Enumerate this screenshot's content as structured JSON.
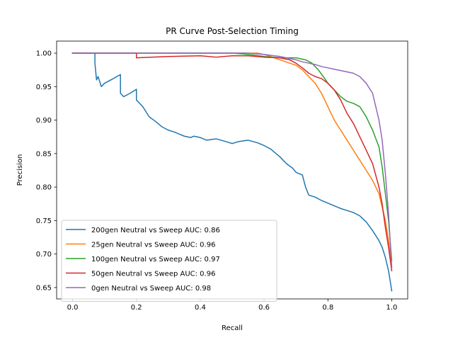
{
  "chart_data": {
    "type": "line",
    "title": "PR Curve Post-Selection Timing",
    "xlabel": "Recall",
    "ylabel": "Precision",
    "xlim": [
      -0.05,
      1.05
    ],
    "ylim": [
      0.633,
      1.018
    ],
    "xticks": [
      0.0,
      0.2,
      0.4,
      0.6,
      0.8,
      1.0
    ],
    "xtick_labels": [
      "0.0",
      "0.2",
      "0.4",
      "0.6",
      "0.8",
      "1.0"
    ],
    "yticks": [
      0.65,
      0.7,
      0.75,
      0.8,
      0.85,
      0.9,
      0.95,
      1.0
    ],
    "ytick_labels": [
      "0.65",
      "0.70",
      "0.75",
      "0.80",
      "0.85",
      "0.90",
      "0.95",
      "1.00"
    ],
    "grid": false,
    "legend_position": "lower-left",
    "series": [
      {
        "name": "200gen Neutral vs Sweep AUC: 0.86",
        "color": "#1f77b4",
        "x": [
          0.0,
          0.07,
          0.07,
          0.075,
          0.08,
          0.09,
          0.1,
          0.12,
          0.15,
          0.15,
          0.16,
          0.18,
          0.2,
          0.2,
          0.22,
          0.24,
          0.26,
          0.28,
          0.3,
          0.32,
          0.35,
          0.37,
          0.38,
          0.4,
          0.42,
          0.45,
          0.48,
          0.5,
          0.52,
          0.55,
          0.58,
          0.6,
          0.62,
          0.65,
          0.67,
          0.69,
          0.7,
          0.72,
          0.73,
          0.74,
          0.76,
          0.78,
          0.8,
          0.82,
          0.84,
          0.86,
          0.88,
          0.9,
          0.92,
          0.94,
          0.96,
          0.97,
          0.98,
          0.99,
          1.0
        ],
        "y": [
          1.0,
          1.0,
          0.985,
          0.96,
          0.965,
          0.95,
          0.955,
          0.96,
          0.968,
          0.94,
          0.935,
          0.94,
          0.946,
          0.93,
          0.92,
          0.905,
          0.898,
          0.89,
          0.885,
          0.882,
          0.876,
          0.874,
          0.876,
          0.874,
          0.87,
          0.872,
          0.868,
          0.865,
          0.868,
          0.87,
          0.866,
          0.862,
          0.857,
          0.845,
          0.835,
          0.828,
          0.822,
          0.818,
          0.8,
          0.788,
          0.785,
          0.78,
          0.776,
          0.772,
          0.768,
          0.765,
          0.762,
          0.757,
          0.748,
          0.735,
          0.72,
          0.71,
          0.695,
          0.675,
          0.645
        ]
      },
      {
        "name": "25gen Neutral vs Sweep AUC: 0.96",
        "color": "#ff7f0e",
        "x": [
          0.0,
          0.3,
          0.5,
          0.58,
          0.6,
          0.62,
          0.65,
          0.68,
          0.7,
          0.72,
          0.74,
          0.76,
          0.78,
          0.8,
          0.82,
          0.84,
          0.86,
          0.88,
          0.9,
          0.92,
          0.94,
          0.96,
          0.97,
          0.98,
          0.99,
          1.0
        ],
        "y": [
          1.0,
          1.0,
          1.0,
          1.0,
          0.998,
          0.995,
          0.99,
          0.985,
          0.982,
          0.975,
          0.965,
          0.955,
          0.94,
          0.92,
          0.9,
          0.885,
          0.87,
          0.855,
          0.84,
          0.825,
          0.81,
          0.79,
          0.77,
          0.75,
          0.72,
          0.68
        ]
      },
      {
        "name": "100gen Neutral vs Sweep AUC: 0.97",
        "color": "#2ca02c",
        "x": [
          0.0,
          0.3,
          0.5,
          0.55,
          0.6,
          0.65,
          0.7,
          0.73,
          0.75,
          0.77,
          0.79,
          0.8,
          0.82,
          0.84,
          0.86,
          0.88,
          0.9,
          0.92,
          0.94,
          0.96,
          0.97,
          0.98,
          0.99,
          1.0
        ],
        "y": [
          1.0,
          1.0,
          1.0,
          0.998,
          0.995,
          0.993,
          0.993,
          0.99,
          0.985,
          0.975,
          0.962,
          0.955,
          0.945,
          0.935,
          0.928,
          0.925,
          0.92,
          0.905,
          0.885,
          0.86,
          0.83,
          0.79,
          0.75,
          0.69
        ]
      },
      {
        "name": "50gen Neutral vs Sweep AUC: 0.96",
        "color": "#d62728",
        "x": [
          0.0,
          0.2,
          0.2,
          0.3,
          0.4,
          0.45,
          0.5,
          0.55,
          0.6,
          0.65,
          0.68,
          0.7,
          0.72,
          0.74,
          0.76,
          0.78,
          0.8,
          0.82,
          0.84,
          0.86,
          0.88,
          0.9,
          0.92,
          0.94,
          0.96,
          0.97,
          0.98,
          0.99,
          1.0
        ],
        "y": [
          1.0,
          1.0,
          0.993,
          0.995,
          0.996,
          0.994,
          0.996,
          0.996,
          0.994,
          0.993,
          0.99,
          0.985,
          0.978,
          0.97,
          0.965,
          0.962,
          0.955,
          0.945,
          0.93,
          0.91,
          0.895,
          0.875,
          0.855,
          0.835,
          0.8,
          0.775,
          0.74,
          0.71,
          0.675
        ]
      },
      {
        "name": "0gen Neutral vs Sweep AUC: 0.98",
        "color": "#9467bd",
        "x": [
          0.0,
          0.3,
          0.55,
          0.6,
          0.65,
          0.68,
          0.7,
          0.72,
          0.74,
          0.76,
          0.78,
          0.8,
          0.82,
          0.84,
          0.86,
          0.88,
          0.9,
          0.92,
          0.94,
          0.95,
          0.96,
          0.97,
          0.98,
          0.99,
          1.0
        ],
        "y": [
          1.0,
          1.0,
          1.0,
          0.998,
          0.995,
          0.992,
          0.99,
          0.987,
          0.985,
          0.983,
          0.98,
          0.978,
          0.976,
          0.974,
          0.972,
          0.97,
          0.965,
          0.955,
          0.94,
          0.92,
          0.9,
          0.87,
          0.82,
          0.76,
          0.68
        ]
      }
    ]
  }
}
